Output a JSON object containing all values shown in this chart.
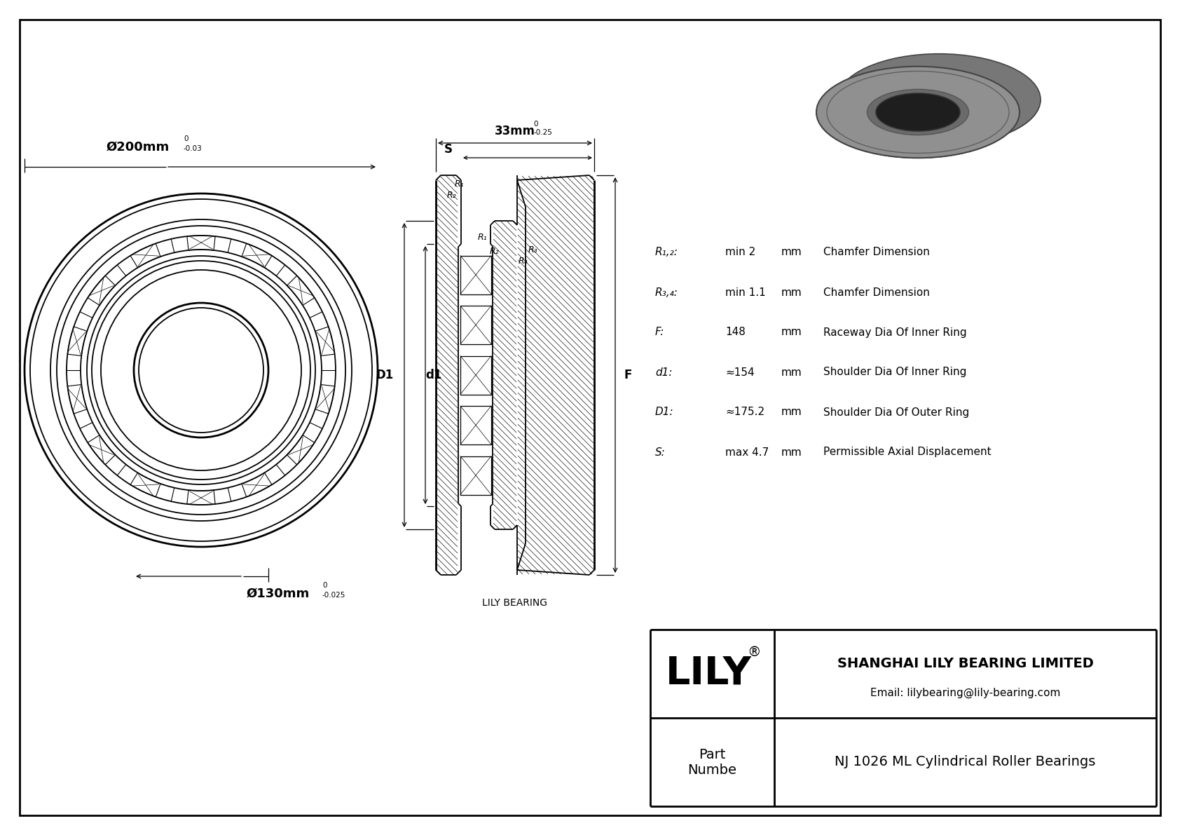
{
  "bg_color": "#ffffff",
  "dim_outer_diameter": "Ø200mm",
  "dim_outer_tol_upper": "0",
  "dim_outer_tol": "-0.03",
  "dim_inner_diameter": "Ø130mm",
  "dim_inner_tol_upper": "0",
  "dim_inner_tol": "-0.025",
  "dim_width": "33mm",
  "dim_width_tol_upper": "0",
  "dim_width_tol": "-0.25",
  "label_S": "S",
  "label_D1": "D1",
  "label_d1": "d1",
  "label_F": "F",
  "label_R1": "R₁",
  "label_R2": "R₂",
  "label_R3": "R₃",
  "label_R4": "R₄",
  "label_lily": "LILY BEARING",
  "spec_R12_label": "R₁,₂:",
  "spec_R12_value": "min 2",
  "spec_R12_unit": "mm",
  "spec_R12_desc": "Chamfer Dimension",
  "spec_R34_label": "R₃,₄:",
  "spec_R34_value": "min 1.1",
  "spec_R34_unit": "mm",
  "spec_R34_desc": "Chamfer Dimension",
  "spec_F_label": "F:",
  "spec_F_value": "148",
  "spec_F_unit": "mm",
  "spec_F_desc": "Raceway Dia Of Inner Ring",
  "spec_d1_label": "d1:",
  "spec_d1_value": "≈154",
  "spec_d1_unit": "mm",
  "spec_d1_desc": "Shoulder Dia Of Inner Ring",
  "spec_D1_label": "D1:",
  "spec_D1_value": "≈175.2",
  "spec_D1_unit": "mm",
  "spec_D1_desc": "Shoulder Dia Of Outer Ring",
  "spec_S_label": "S:",
  "spec_S_value": "max 4.7",
  "spec_S_unit": "mm",
  "spec_S_desc": "Permissible Axial Displacement",
  "company_name": "SHANGHAI LILY BEARING LIMITED",
  "company_email": "Email: lilybearing@lily-bearing.com",
  "part_label": "Part\nNumbe",
  "part_number": "NJ 1026 ML Cylindrical Roller Bearings",
  "logo_text": "LILY"
}
